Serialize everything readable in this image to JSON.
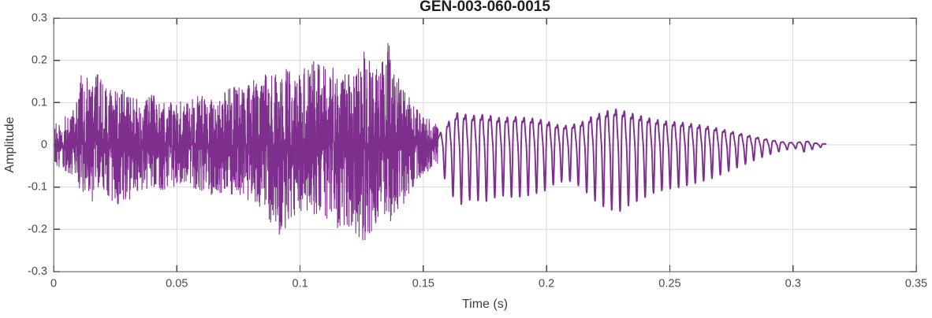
{
  "figure": {
    "background": "#FFFFFF"
  },
  "chart_data": {
    "type": "line",
    "title": "GEN-003-060-0015",
    "xlabel": "Time (s)",
    "ylabel": "Amplitude",
    "xlim": [
      0,
      0.35
    ],
    "ylim": [
      -0.3,
      0.3
    ],
    "xticks": [
      0,
      0.05,
      0.1,
      0.15,
      0.2,
      0.25,
      0.3,
      0.35
    ],
    "xtick_labels": [
      "0",
      "0.05",
      "0.1",
      "0.15",
      "0.2",
      "0.25",
      "0.3",
      "0.35"
    ],
    "yticks": [
      -0.3,
      -0.2,
      -0.1,
      0,
      0.1,
      0.2,
      0.3
    ],
    "ytick_labels": [
      "-0.3",
      "-0.2",
      "-0.1",
      "0",
      "0.1",
      "0.2",
      "0.3"
    ],
    "grid": true,
    "legend": "none",
    "styles": {
      "line_color": "#7E2F8E",
      "grid_color": "#DBDBDB",
      "axis_box_color": "#8A8A8A",
      "tick_mark_color": "#444444",
      "tick_label_color": "#4A4A4A",
      "axis_label_color": "#3D3D3D",
      "title_color": "#1F1F1F",
      "background": "#FFFFFF"
    },
    "signal": {
      "description": "Acoustic waveform: dense broadband burst from 0 s to ~0.156 s peaking near +0.245/-0.235, followed by a decaying ~295 Hz tone (max ~0.16 near t=0.229) fading out by ~0.313 s",
      "noise_segment": {
        "t_start": 0,
        "t_end": 0.156,
        "sample_rate_hz": 20000,
        "seed": 77,
        "spike_exponent": 1.6,
        "envelope_t_pos_neg": [
          [
            0.0,
            0.05,
            0.045
          ],
          [
            0.004,
            0.065,
            0.06
          ],
          [
            0.008,
            0.085,
            0.075
          ],
          [
            0.012,
            0.19,
            0.13
          ],
          [
            0.015,
            0.15,
            0.16
          ],
          [
            0.018,
            0.17,
            0.12
          ],
          [
            0.022,
            0.13,
            0.125
          ],
          [
            0.026,
            0.14,
            0.14
          ],
          [
            0.03,
            0.12,
            0.14
          ],
          [
            0.035,
            0.11,
            0.11
          ],
          [
            0.04,
            0.12,
            0.1
          ],
          [
            0.045,
            0.1,
            0.11
          ],
          [
            0.05,
            0.1,
            0.1
          ],
          [
            0.055,
            0.11,
            0.1
          ],
          [
            0.06,
            0.12,
            0.11
          ],
          [
            0.065,
            0.105,
            0.12
          ],
          [
            0.07,
            0.13,
            0.12
          ],
          [
            0.075,
            0.14,
            0.13
          ],
          [
            0.08,
            0.15,
            0.14
          ],
          [
            0.085,
            0.165,
            0.155
          ],
          [
            0.091,
            0.175,
            0.235
          ],
          [
            0.096,
            0.19,
            0.175
          ],
          [
            0.101,
            0.185,
            0.165
          ],
          [
            0.106,
            0.2,
            0.17
          ],
          [
            0.111,
            0.195,
            0.18
          ],
          [
            0.116,
            0.175,
            0.2
          ],
          [
            0.121,
            0.185,
            0.205
          ],
          [
            0.126,
            0.23,
            0.23
          ],
          [
            0.131,
            0.185,
            0.19
          ],
          [
            0.136,
            0.245,
            0.185
          ],
          [
            0.14,
            0.16,
            0.16
          ],
          [
            0.144,
            0.115,
            0.12
          ],
          [
            0.148,
            0.085,
            0.085
          ],
          [
            0.152,
            0.065,
            0.065
          ],
          [
            0.156,
            0.045,
            0.045
          ]
        ]
      },
      "tone_segment": {
        "t_start": 0.156,
        "t_end": 0.3135,
        "sample_rate_hz": 12000,
        "freq_hz": 295,
        "harmonics_order_amp_phase": [
          [
            1,
            1.0,
            0
          ],
          [
            2,
            0.35,
            1.2
          ],
          [
            3,
            0.18,
            2.1
          ]
        ],
        "envelope_t_amp": [
          [
            0.156,
            0.04
          ],
          [
            0.16,
            0.1
          ],
          [
            0.164,
            0.145
          ],
          [
            0.169,
            0.13
          ],
          [
            0.175,
            0.135
          ],
          [
            0.181,
            0.12
          ],
          [
            0.187,
            0.125
          ],
          [
            0.193,
            0.12
          ],
          [
            0.199,
            0.11
          ],
          [
            0.204,
            0.09
          ],
          [
            0.209,
            0.085
          ],
          [
            0.214,
            0.1
          ],
          [
            0.219,
            0.13
          ],
          [
            0.224,
            0.15
          ],
          [
            0.229,
            0.16
          ],
          [
            0.233,
            0.145
          ],
          [
            0.238,
            0.13
          ],
          [
            0.243,
            0.115
          ],
          [
            0.249,
            0.105
          ],
          [
            0.255,
            0.1
          ],
          [
            0.261,
            0.09
          ],
          [
            0.267,
            0.08
          ],
          [
            0.273,
            0.065
          ],
          [
            0.279,
            0.05
          ],
          [
            0.285,
            0.035
          ],
          [
            0.291,
            0.022
          ],
          [
            0.296,
            0.013
          ],
          [
            0.301,
            0.009
          ],
          [
            0.305,
            0.018
          ],
          [
            0.309,
            0.008
          ],
          [
            0.3135,
            0.004
          ]
        ]
      }
    }
  }
}
